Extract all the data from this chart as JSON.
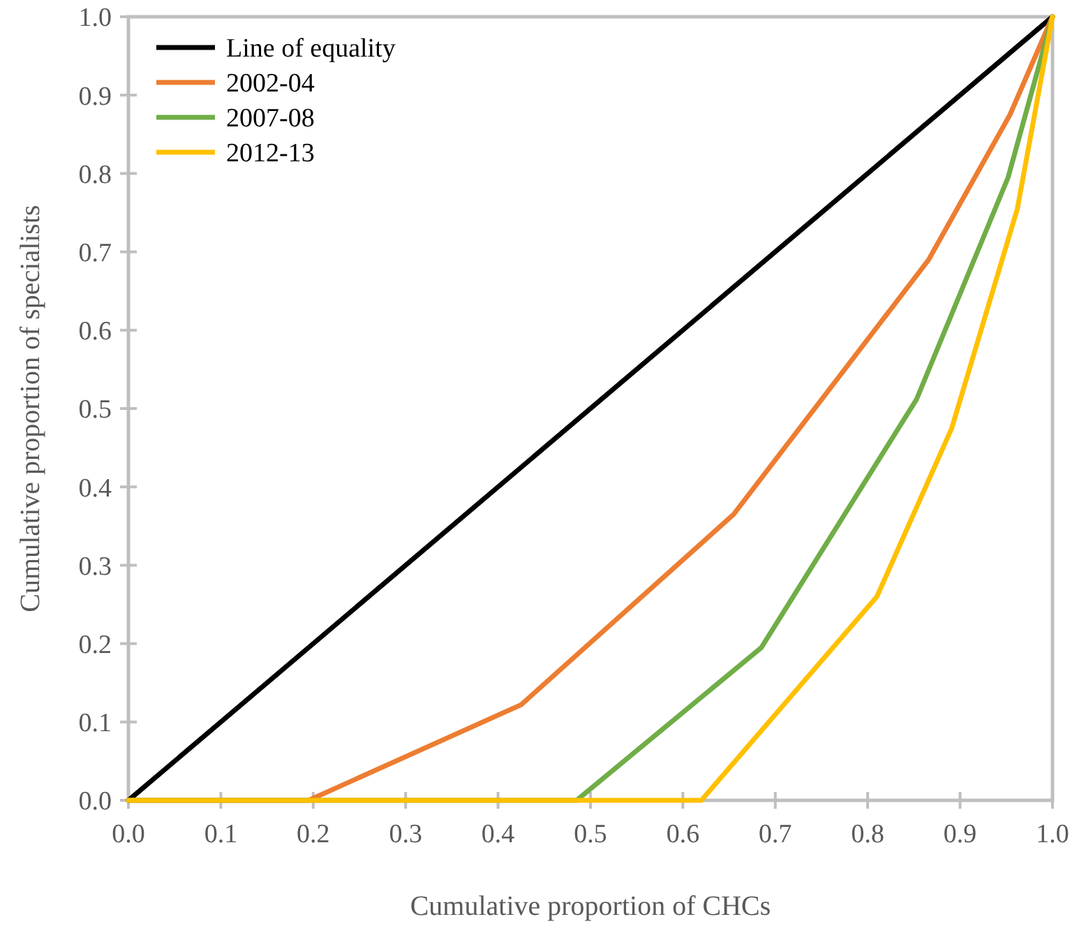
{
  "chart_data": {
    "type": "line",
    "xlabel": "Cumulative proportion of CHCs",
    "ylabel": "Cumulative proportion of specialists",
    "xlim": [
      0,
      1
    ],
    "ylim": [
      0,
      1
    ],
    "xticks": [
      {
        "value": 0,
        "label": "0.0"
      },
      {
        "value": 0.1,
        "label": "0.1"
      },
      {
        "value": 0.2,
        "label": "0.2"
      },
      {
        "value": 0.3,
        "label": "0.3"
      },
      {
        "value": 0.4,
        "label": "0.4"
      },
      {
        "value": 0.5,
        "label": "0.5"
      },
      {
        "value": 0.6,
        "label": "0.6"
      },
      {
        "value": 0.7,
        "label": "0.7"
      },
      {
        "value": 0.8,
        "label": "0.8"
      },
      {
        "value": 0.9,
        "label": "0.9"
      },
      {
        "value": 1,
        "label": "1.0"
      }
    ],
    "yticks": [
      {
        "value": 0,
        "label": "0.0"
      },
      {
        "value": 0.1,
        "label": "0.1"
      },
      {
        "value": 0.2,
        "label": "0.2"
      },
      {
        "value": 0.3,
        "label": "0.3"
      },
      {
        "value": 0.4,
        "label": "0.4"
      },
      {
        "value": 0.5,
        "label": "0.5"
      },
      {
        "value": 0.6,
        "label": "0.6"
      },
      {
        "value": 0.7,
        "label": "0.7"
      },
      {
        "value": 0.8,
        "label": "0.8"
      },
      {
        "value": 0.9,
        "label": "0.9"
      },
      {
        "value": 1,
        "label": "1.0"
      }
    ],
    "grid": false,
    "legend": "top left",
    "marker": "none",
    "series": [
      {
        "name": "Line of equality",
        "color": "#000000",
        "x": [
          0,
          1
        ],
        "values": [
          0,
          1
        ]
      },
      {
        "name": "2002-04",
        "color": "#ed7d31",
        "x": [
          0,
          0.195,
          0.425,
          0.655,
          0.866,
          0.954,
          1
        ],
        "values": [
          0,
          0,
          0.122,
          0.365,
          0.69,
          0.875,
          1
        ]
      },
      {
        "name": "2007-08",
        "color": "#70ad47",
        "x": [
          0,
          0.485,
          0.685,
          0.853,
          0.952,
          1
        ],
        "values": [
          0,
          0,
          0.195,
          0.512,
          0.795,
          1
        ]
      },
      {
        "name": "2012-13",
        "color": "#ffc000",
        "x": [
          0,
          0.62,
          0.81,
          0.891,
          0.962,
          1
        ],
        "values": [
          0,
          0,
          0.26,
          0.475,
          0.755,
          1
        ]
      }
    ]
  }
}
